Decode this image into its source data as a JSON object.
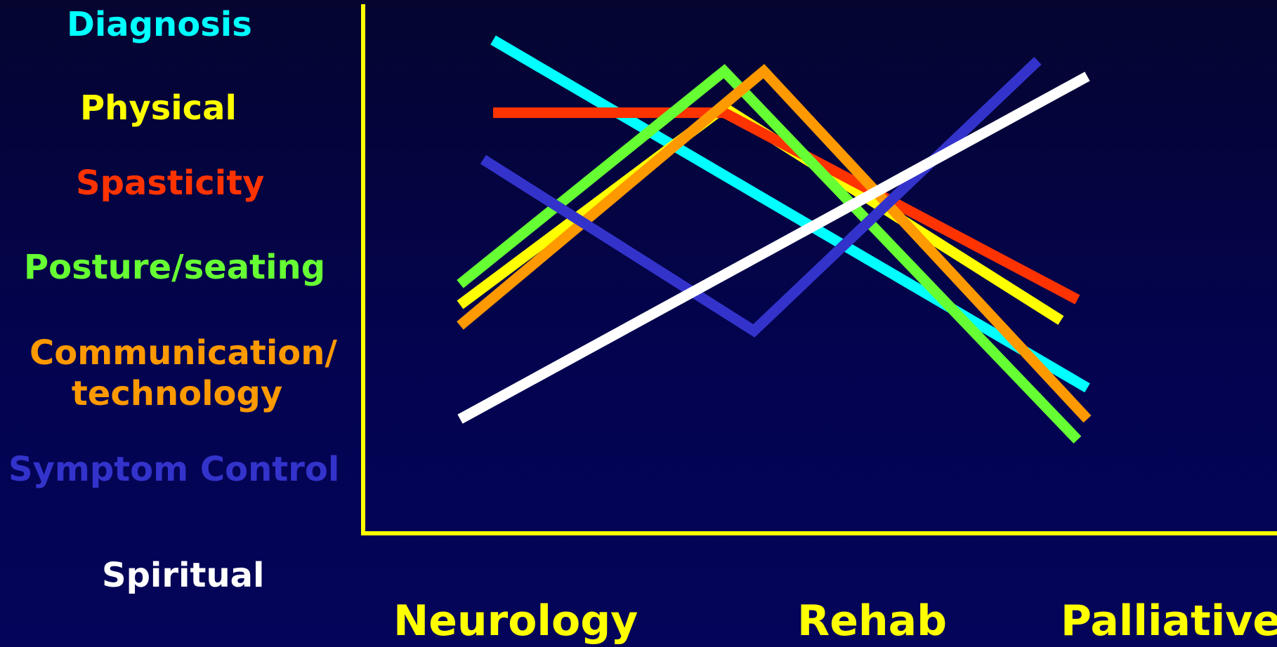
{
  "chart_data": {
    "type": "line",
    "title": "",
    "xlabel": "",
    "ylabel": "",
    "categories": [
      "Neurology",
      "Rehab",
      "Palliative"
    ],
    "ylim": [
      0,
      100
    ],
    "grid": false,
    "legend_placement": "left",
    "axis_color": "#ffff00",
    "series": [
      {
        "name": "Diagnosis",
        "color": "#00ffff",
        "points": [
          [
            0.1,
            95
          ],
          [
            1.9,
            28
          ]
        ]
      },
      {
        "name": "Physical",
        "color": "#ffff00",
        "points": [
          [
            0.0,
            44
          ],
          [
            0.8,
            82
          ],
          [
            1.82,
            41
          ]
        ]
      },
      {
        "name": "Spasticity",
        "color": "#ff3300",
        "points": [
          [
            0.1,
            81
          ],
          [
            0.8,
            81
          ],
          [
            1.87,
            45
          ]
        ]
      },
      {
        "name": "Posture/seating",
        "color": "#66ff33",
        "points": [
          [
            0.0,
            48
          ],
          [
            0.8,
            89
          ],
          [
            1.87,
            18
          ]
        ]
      },
      {
        "name": "Communication/\ntechnology",
        "color": "#ff9900",
        "points": [
          [
            0.0,
            40
          ],
          [
            0.92,
            89
          ],
          [
            1.9,
            22
          ]
        ]
      },
      {
        "name": "Symptom Control",
        "color": "#3333cc",
        "points": [
          [
            0.07,
            72
          ],
          [
            0.89,
            39
          ],
          [
            1.75,
            91
          ]
        ]
      },
      {
        "name": "Spiritual",
        "color": "#ffffff",
        "points": [
          [
            0.0,
            22
          ],
          [
            1.9,
            88
          ]
        ]
      }
    ]
  }
}
